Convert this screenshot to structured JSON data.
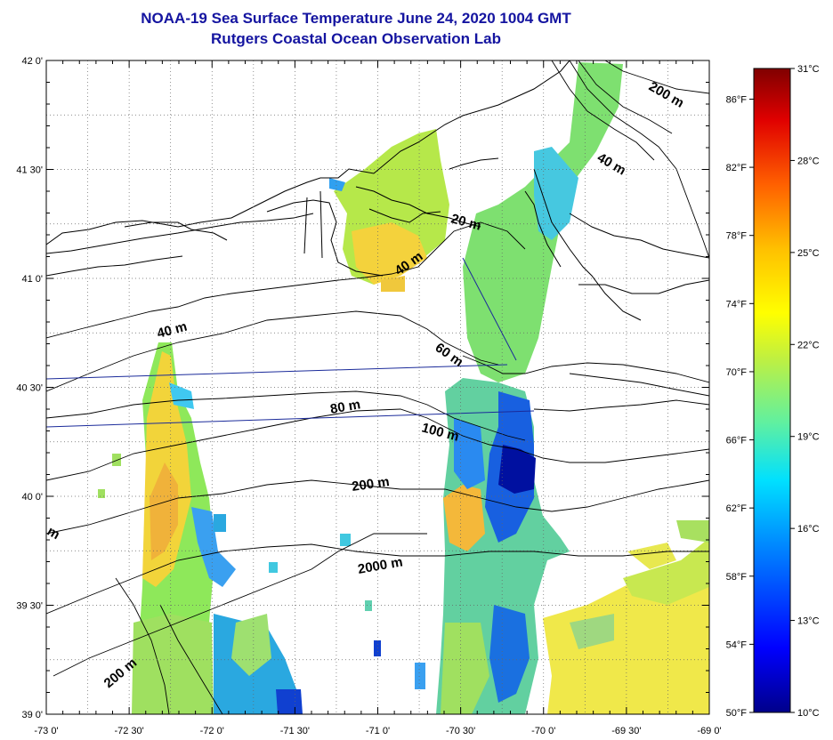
{
  "header": {
    "title": "NOAA-19 Sea Surface Temperature June 24, 2020 1004 GMT",
    "subtitle": "Rutgers Coastal Ocean Observation Lab"
  },
  "map": {
    "lon_range": [
      -73.0,
      -69.0
    ],
    "lat_range": [
      39.0,
      42.0
    ],
    "lon_labels": [
      "-73 0'",
      "-72 30'",
      "-72 0'",
      "-71 30'",
      "-71 0'",
      "-70 30'",
      "-70 0'",
      "-69 30'",
      "-69 0'"
    ],
    "lat_labels": [
      "42 0'",
      "41 30'",
      "41 0'",
      "40 30'",
      "40 0'",
      "39 30'",
      "39 0'"
    ],
    "contour_labels": [
      "200 m",
      "40 m",
      "20 m",
      "40 m",
      "40 m",
      "60 m",
      "80 m",
      "100 m",
      "200 m",
      "2000 m",
      "200 m",
      "m"
    ],
    "land_color": "#ffffff",
    "missing_color": "#ffffff",
    "grid": "dotted"
  },
  "colorbar": {
    "celsius_labels": [
      "31°C",
      "28°C",
      "25°C",
      "22°C",
      "19°C",
      "16°C",
      "13°C",
      "10°C"
    ],
    "fahrenheit_labels": [
      "86°F",
      "82°F",
      "78°F",
      "74°F",
      "70°F",
      "66°F",
      "62°F",
      "58°F",
      "54°F",
      "50°F"
    ],
    "range_c": [
      10,
      31
    ],
    "colors": [
      "#00008a",
      "#0000ff",
      "#0080ff",
      "#00e0ff",
      "#60f0a0",
      "#c0f040",
      "#ffff00",
      "#ffc000",
      "#ff6000",
      "#e00000",
      "#800000"
    ]
  }
}
